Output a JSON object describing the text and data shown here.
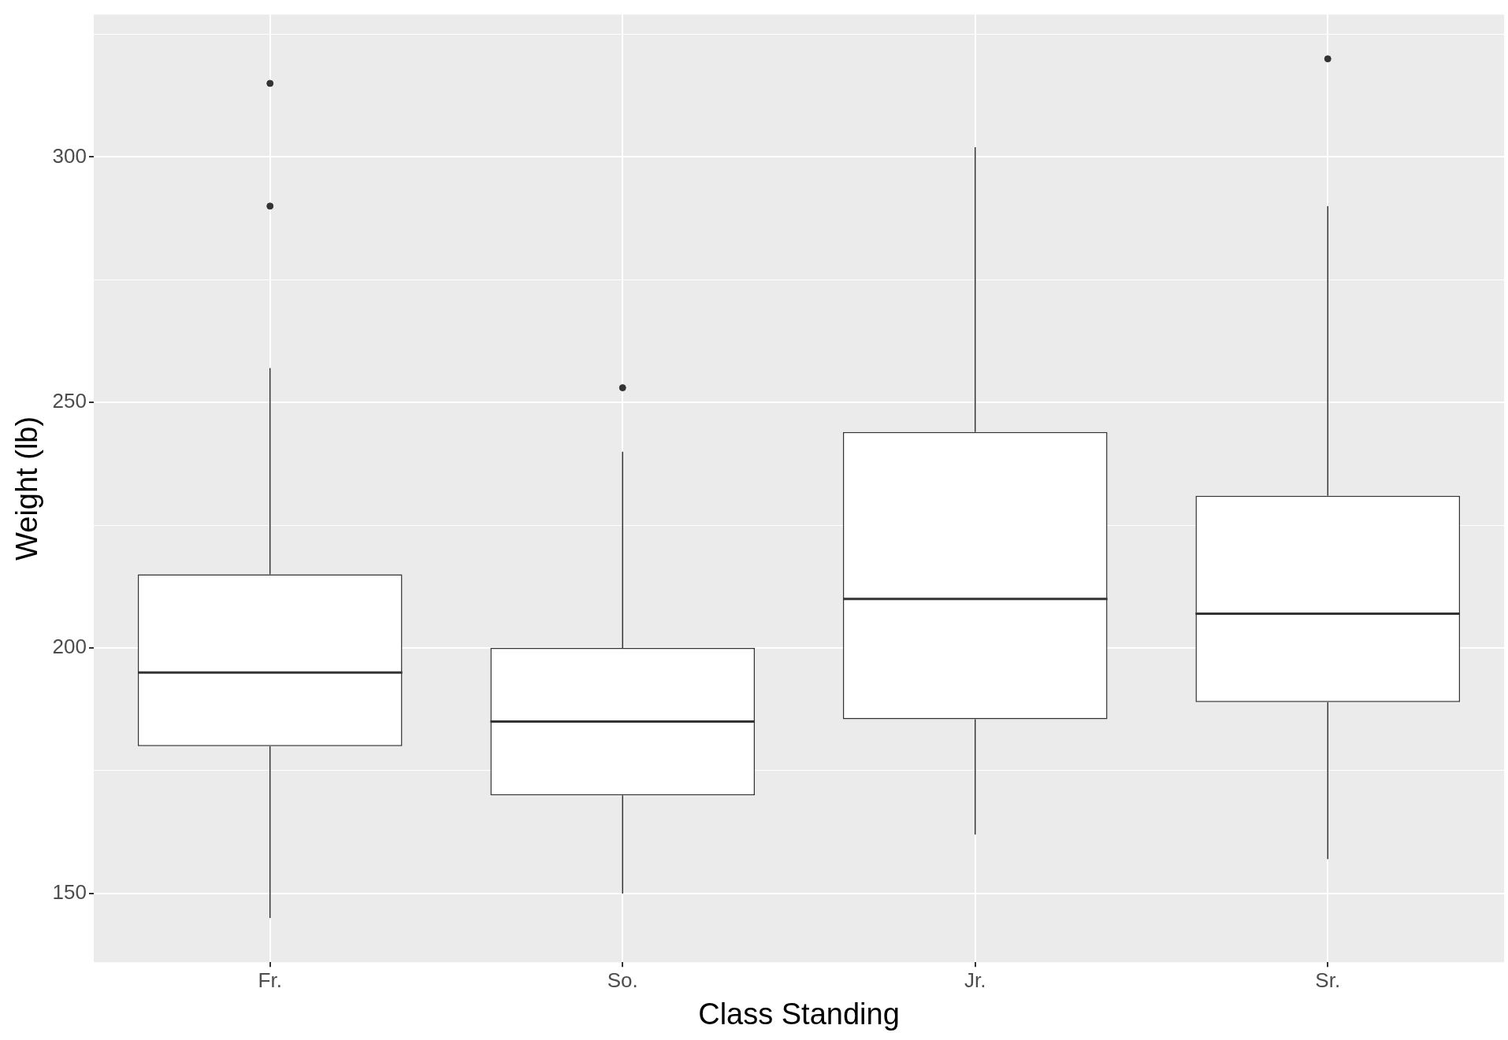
{
  "chart_data": {
    "type": "box",
    "xlabel": "Class Standing",
    "ylabel": "Weight (lb)",
    "categories": [
      "Fr.",
      "So.",
      "Jr.",
      "Sr."
    ],
    "boxes": [
      {
        "low": 145,
        "q1": 180,
        "median": 195,
        "q3": 215,
        "high": 257,
        "outliers": [
          290,
          315
        ]
      },
      {
        "low": 150,
        "q1": 170,
        "median": 185,
        "q3": 200,
        "high": 240,
        "outliers": [
          253
        ]
      },
      {
        "low": 162,
        "q1": 185.5,
        "median": 210,
        "q3": 244,
        "high": 302
      },
      {
        "low": 157,
        "q1": 189,
        "median": 207,
        "q3": 231,
        "high": 290,
        "outliers": [
          320
        ]
      }
    ],
    "ylim": [
      136,
      329
    ],
    "yticks": [
      150,
      {
        "value": 175,
        "label": null
      },
      200,
      {
        "value": 225,
        "label": null
      },
      250,
      {
        "value": 275,
        "label": null
      },
      300,
      {
        "value": 325,
        "label": null
      }
    ],
    "grid": true,
    "legend": false
  }
}
